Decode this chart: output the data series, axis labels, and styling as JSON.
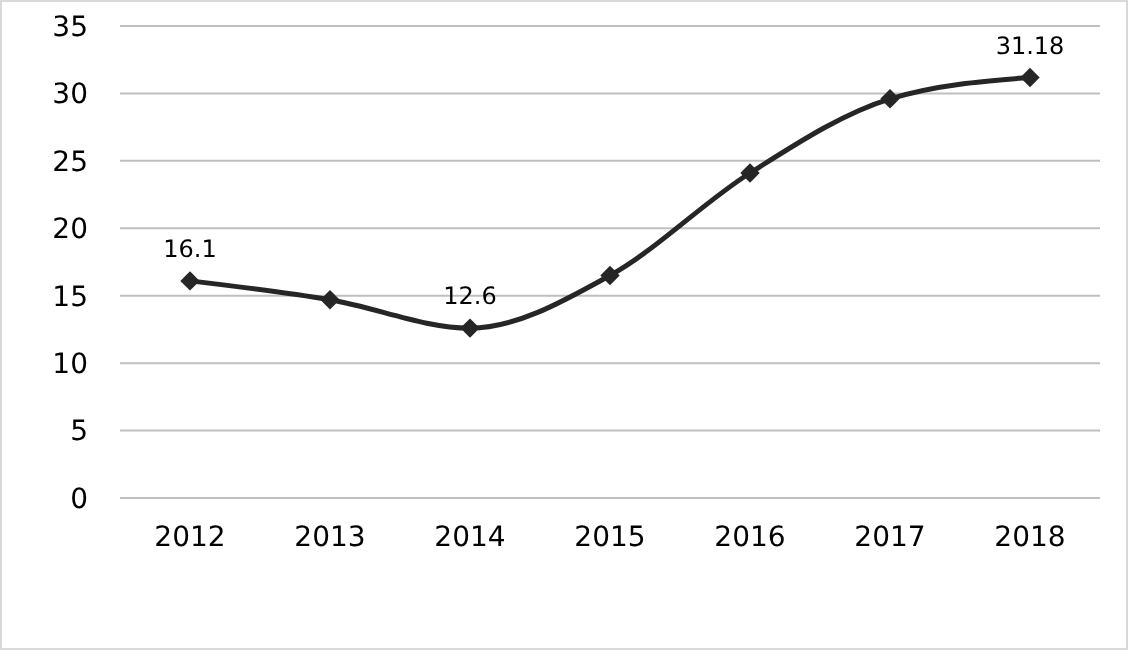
{
  "chart_data": {
    "type": "line",
    "categories": [
      "2012",
      "2013",
      "2014",
      "2015",
      "2016",
      "2017",
      "2018"
    ],
    "series": [
      {
        "color": "#262626",
        "values": [
          16.1,
          14.7,
          12.6,
          16.5,
          24.1,
          29.6,
          31.18
        ],
        "value_labels": [
          "16.1",
          null,
          "12.6",
          null,
          null,
          null,
          "31.18"
        ]
      }
    ],
    "ylim": [
      0,
      35
    ],
    "yticks": [
      0,
      5,
      10,
      15,
      20,
      25,
      30,
      35
    ],
    "grid": "y",
    "marker": "diamond",
    "line_style": "solid"
  }
}
